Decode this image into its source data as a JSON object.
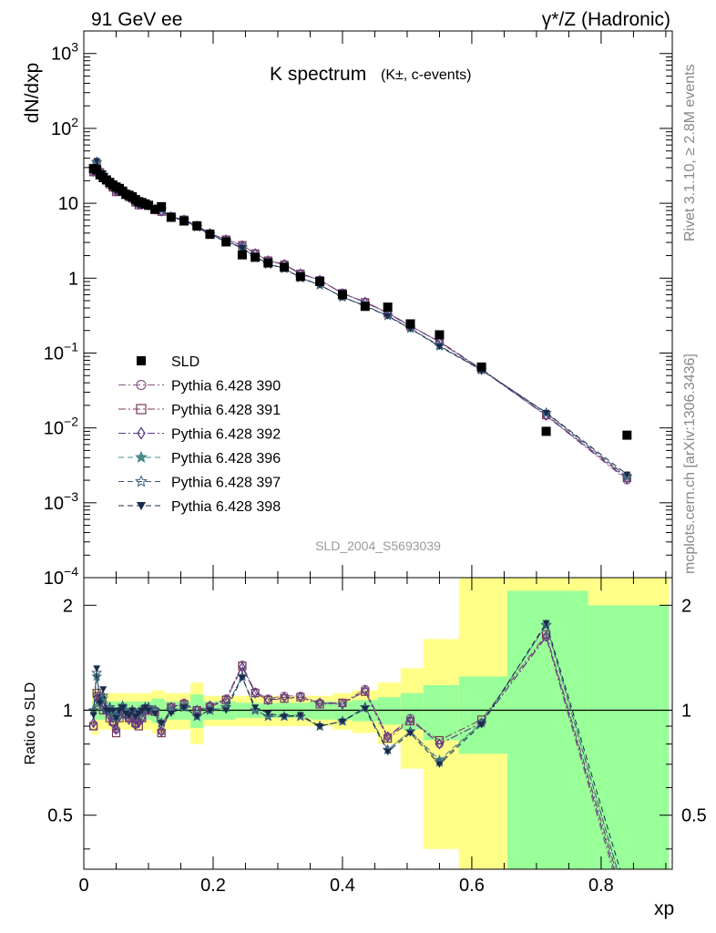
{
  "header": {
    "left": "91 GeV ee",
    "right": "γ*/Z (Hadronic)"
  },
  "side_labels": {
    "rivet": "Rivet 3.1.10, ≥ 2.8M events",
    "mcplots": "mcplots.cern.ch [arXiv:1306.3436]"
  },
  "chart_data": {
    "type": "scatter",
    "title": "K spectrum",
    "title_sub": "(K±, c-events)",
    "analysis": "SLD_2004_S5693039",
    "xlabel": "xp",
    "ylabel": "dN/dxp",
    "ratio_ylabel": "Ratio to SLD",
    "xlim": [
      0,
      0.91
    ],
    "ylim": [
      0.0001,
      2000
    ],
    "y_scale": "log",
    "ratio_ylim": [
      0.35,
      2.4
    ],
    "ratio_scale": "log",
    "x_ticks": [
      "0",
      "0.2",
      "0.4",
      "0.6",
      "0.8"
    ],
    "y_ticks": [
      "10^-4",
      "10^-3",
      "10^-2",
      "10^-1",
      "1",
      "10",
      "10^2",
      "10^3"
    ],
    "ratio_ticks": [
      "0.5",
      "1",
      "2"
    ],
    "legend_placement": "lower-left",
    "x": [
      0.015,
      0.02,
      0.025,
      0.03,
      0.035,
      0.04,
      0.045,
      0.05,
      0.055,
      0.06,
      0.065,
      0.07,
      0.075,
      0.08,
      0.085,
      0.09,
      0.095,
      0.1,
      0.11,
      0.12,
      0.135,
      0.155,
      0.175,
      0.195,
      0.22,
      0.245,
      0.265,
      0.285,
      0.31,
      0.335,
      0.365,
      0.4,
      0.435,
      0.47,
      0.505,
      0.55,
      0.615,
      0.715,
      0.84
    ],
    "data": {
      "name": "SLD",
      "values": [
        29,
        28,
        24,
        22,
        20.5,
        19,
        17.5,
        16.5,
        15.8,
        14.5,
        13.2,
        12.8,
        12.2,
        11.2,
        10.5,
        10.2,
        9.8,
        9.4,
        8.3,
        9.0,
        6.5,
        5.8,
        5.0,
        3.85,
        3.05,
        2.05,
        1.9,
        1.6,
        1.4,
        1.05,
        0.9,
        0.6,
        0.42,
        0.41,
        0.245,
        0.175,
        0.065,
        0.009,
        0.008
      ],
      "ratio_band_x": [
        0.013,
        0.018,
        0.023,
        0.028,
        0.033,
        0.038,
        0.043,
        0.048,
        0.053,
        0.058,
        0.063,
        0.068,
        0.073,
        0.078,
        0.083,
        0.088,
        0.093,
        0.098,
        0.105,
        0.115,
        0.125,
        0.145,
        0.165,
        0.185,
        0.21,
        0.235,
        0.255,
        0.275,
        0.295,
        0.325,
        0.35,
        0.385,
        0.415,
        0.455,
        0.49,
        0.525,
        0.58,
        0.655,
        0.78,
        0.905
      ],
      "ratio_stat": [
        0.06,
        0.06,
        0.06,
        0.06,
        0.06,
        0.06,
        0.06,
        0.06,
        0.06,
        0.06,
        0.06,
        0.06,
        0.06,
        0.06,
        0.06,
        0.06,
        0.06,
        0.06,
        0.08,
        0.08,
        0.06,
        0.06,
        0.11,
        0.06,
        0.06,
        0.05,
        0.05,
        0.05,
        0.05,
        0.05,
        0.06,
        0.06,
        0.07,
        0.09,
        0.12,
        0.18,
        0.25,
        1.2,
        1.0
      ],
      "ratio_tot": [
        0.15,
        0.15,
        0.12,
        0.12,
        0.12,
        0.12,
        0.12,
        0.12,
        0.12,
        0.12,
        0.12,
        0.12,
        0.12,
        0.12,
        0.12,
        0.12,
        0.12,
        0.12,
        0.14,
        0.14,
        0.12,
        0.12,
        0.2,
        0.1,
        0.1,
        0.1,
        0.1,
        0.1,
        0.1,
        0.1,
        0.1,
        0.12,
        0.14,
        0.2,
        0.32,
        0.6,
        1.4,
        2.0,
        2.0
      ]
    },
    "series": [
      {
        "name": "Pythia 6.428 390",
        "color": "#8a5a8a",
        "marker": "circle-open",
        "dash": "8,3,2,3",
        "ratio": [
          0.9,
          1.1,
          1.1,
          1.05,
          1.0,
          1.0,
          0.92,
          0.88,
          0.97,
          1.0,
          0.97,
          0.95,
          0.95,
          0.91,
          0.93,
          0.95,
          1.0,
          1.0,
          1.0,
          0.87,
          1.02,
          1.05,
          1.0,
          1.03,
          1.08,
          1.35,
          1.13,
          1.08,
          1.1,
          1.1,
          1.05,
          1.05,
          1.15,
          0.84,
          0.95,
          0.8,
          0.92,
          1.62,
          0.25
        ]
      },
      {
        "name": "Pythia 6.428 391",
        "color": "#7a3a5a",
        "marker": "square-open",
        "dash": "8,3,2,3",
        "ratio": [
          0.9,
          1.12,
          1.08,
          1.0,
          1.0,
          0.95,
          0.93,
          0.86,
          0.95,
          1.0,
          0.98,
          0.95,
          0.95,
          0.92,
          0.9,
          0.95,
          1.0,
          1.0,
          0.99,
          0.86,
          1.02,
          1.04,
          1.0,
          1.02,
          1.07,
          1.34,
          1.12,
          1.07,
          1.08,
          1.09,
          1.04,
          1.05,
          1.13,
          0.83,
          0.93,
          0.82,
          0.94,
          1.65,
          0.27
        ]
      },
      {
        "name": "Pythia 6.428 392",
        "color": "#5a3a8a",
        "marker": "diamond-open",
        "dash": "8,3,2,3",
        "ratio": [
          0.92,
          1.08,
          1.08,
          1.02,
          1.0,
          0.96,
          0.92,
          0.88,
          0.96,
          1.0,
          0.97,
          0.94,
          0.95,
          0.91,
          0.92,
          0.95,
          1.0,
          1.0,
          1.0,
          0.87,
          1.02,
          1.04,
          1.0,
          1.03,
          1.07,
          1.33,
          1.12,
          1.07,
          1.09,
          1.09,
          1.05,
          1.04,
          1.14,
          0.84,
          0.94,
          0.8,
          0.92,
          1.63,
          0.26
        ]
      },
      {
        "name": "Pythia 6.428 396",
        "color": "#4a8a8a",
        "marker": "star",
        "dash": "6,4",
        "ratio": [
          1.0,
          1.25,
          1.05,
          1.08,
          1.0,
          1.02,
          0.98,
          0.95,
          1.0,
          1.02,
          1.0,
          0.98,
          1.0,
          0.97,
          0.98,
          1.0,
          1.02,
          1.02,
          1.0,
          0.92,
          1.0,
          1.02,
          0.96,
          1.0,
          1.02,
          1.25,
          1.0,
          0.96,
          0.96,
          0.96,
          0.9,
          0.93,
          1.02,
          0.77,
          0.87,
          0.72,
          0.92,
          1.75,
          0.28
        ]
      },
      {
        "name": "Pythia 6.428 397",
        "color": "#3a5a7a",
        "marker": "star-open",
        "dash": "6,4",
        "ratio": [
          1.0,
          1.28,
          1.05,
          1.1,
          1.0,
          1.02,
          0.98,
          0.96,
          1.0,
          1.03,
          1.0,
          0.98,
          1.0,
          0.97,
          0.99,
          1.0,
          1.02,
          1.02,
          1.0,
          0.92,
          1.0,
          1.02,
          0.96,
          1.0,
          1.02,
          1.25,
          1.0,
          0.96,
          0.96,
          0.96,
          0.9,
          0.93,
          1.02,
          0.77,
          0.87,
          0.71,
          0.92,
          1.76,
          0.28
        ]
      },
      {
        "name": "Pythia 6.428 398",
        "color": "#1a2a4a",
        "marker": "triangle-down",
        "dash": "6,4",
        "ratio": [
          0.97,
          1.32,
          1.05,
          1.15,
          1.0,
          1.0,
          1.0,
          0.95,
          1.0,
          1.02,
          0.98,
          0.97,
          1.0,
          0.96,
          0.98,
          1.0,
          1.02,
          1.0,
          0.98,
          0.92,
          0.98,
          1.02,
          0.96,
          1.0,
          1.0,
          1.24,
          1.02,
          0.98,
          0.96,
          0.97,
          0.9,
          0.93,
          1.01,
          0.76,
          0.86,
          0.7,
          0.91,
          1.78,
          0.3
        ]
      }
    ]
  }
}
